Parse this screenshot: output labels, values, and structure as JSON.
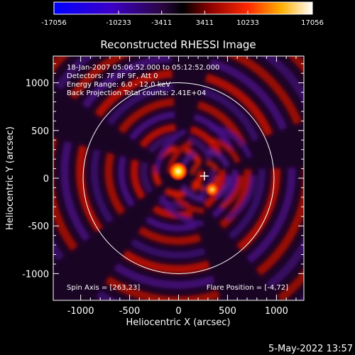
{
  "colorbar": {
    "ticks": [
      "-17056",
      "-10233",
      "-3411",
      "3411",
      "10233",
      "17056"
    ],
    "min": -17056,
    "max": 17056,
    "colors": [
      "#0000ff",
      "#4400cc",
      "#3a0a5a",
      "#000000",
      "#8a0000",
      "#ff2a00",
      "#ffb000",
      "#ffffff"
    ]
  },
  "title": "Reconstructed RHESSI Image",
  "info_lines": [
    "18-Jan-2007 05:06:52.000 to 05:12:52.000",
    "Detectors: 7F 8F 9F, Att 0",
    "Energy Range: 6.0 - 12.0 keV",
    "Back Projection    Total counts: 2.41E+04"
  ],
  "spin_axis": "Spin Axis = [263,23]",
  "flare_position": "Flare Position = [-4,72]",
  "axes": {
    "xlabel": "Heliocentric X (arcsec)",
    "ylabel": "Heliocentric Y (arcsec)",
    "xticks": [
      "-1000",
      "-500",
      "0",
      "500",
      "1000"
    ],
    "yticks": [
      "1000",
      "500",
      "0",
      "-500",
      "-1000"
    ],
    "xlim": [
      -1280,
      1280
    ],
    "ylim": [
      -1280,
      1280
    ]
  },
  "solar_disk_radius_arcsec": 975,
  "sources": [
    {
      "x": -4,
      "y": 72
    },
    {
      "x": 270,
      "y": 30
    }
  ],
  "spin_axis_marker": {
    "x": 263,
    "y": 23
  },
  "timestamp": "5-May-2022 13:57"
}
